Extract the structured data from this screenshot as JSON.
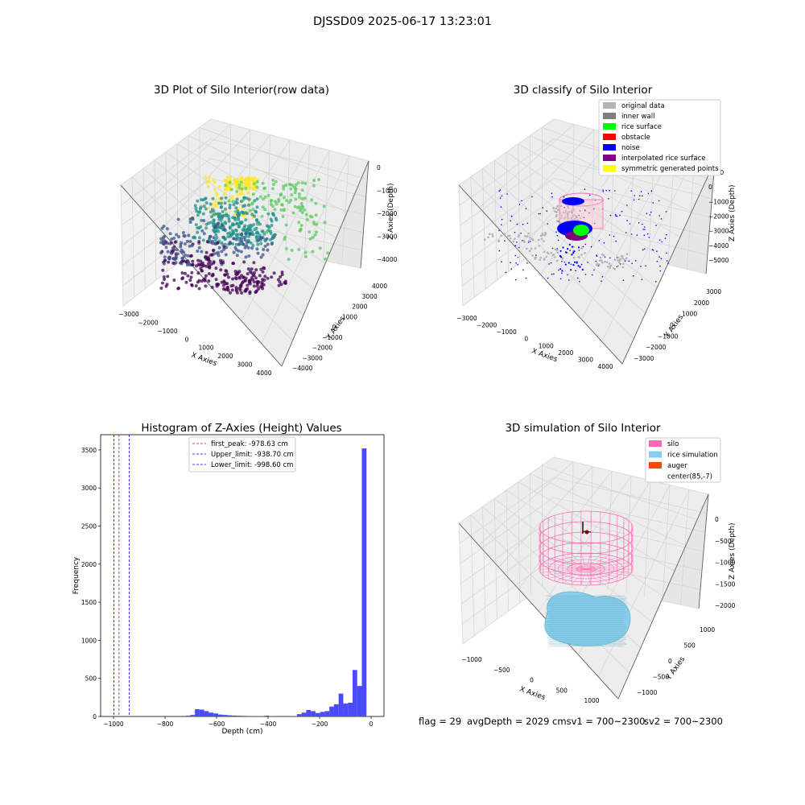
{
  "suptitle": "DJSSD09 2025-06-17 13:23:01",
  "footer": {
    "flag": "flag = 29",
    "avg": "avgDepth = 2029 cmsv1 = 700~2300",
    "sv2": "sv2 = 700~2300"
  },
  "colors": {
    "original": "#b3b3b3",
    "inner_wall": "#7f7f7f",
    "rice_surface": "#00ff00",
    "obstacle": "#ff0000",
    "noise": "#0000ff",
    "interp": "#800080",
    "sym": "#ffff00",
    "silo": "#ff69b4",
    "rice_sim": "#87ceeb",
    "auger": "#ff4500",
    "hist_bar": "#4a4aff"
  },
  "chart_data": [
    {
      "type": "scatter3d",
      "title": "3D Plot of Silo Interior(row data)",
      "xlabel": "X Axies",
      "ylabel": "Y Axies",
      "zlabel": "Z Axies (Depth)",
      "xticks": [
        "−3000",
        "−2000",
        "−1000",
        "0",
        "1000",
        "2000",
        "3000",
        "4000"
      ],
      "yticks": [
        "−4000",
        "−3000",
        "−2000",
        "−1000",
        "0",
        "1000",
        "2000",
        "3000",
        "4000"
      ],
      "zticks": [
        "0",
        "−1000",
        "−2000",
        "−3000",
        "−4000"
      ],
      "colormap": "viridis (by depth)"
    },
    {
      "type": "scatter3d",
      "title": "3D classify of Silo Interior",
      "xlabel": "X Axies",
      "ylabel": "Y Axies",
      "zlabel": "Z Axies (Depth)",
      "xticks": [
        "−3000",
        "−2000",
        "−1000",
        "0",
        "1000",
        "2000",
        "3000",
        "4000"
      ],
      "yticks": [
        "−3000",
        "−2000",
        "−1000",
        "0",
        "1000",
        "2000",
        "3000"
      ],
      "zticks": [
        "1000",
        "0",
        "−1000",
        "−2000",
        "−3000",
        "−4000",
        "−5000"
      ],
      "legend": [
        "original data",
        "inner wall",
        "rice surface",
        "obstacle",
        "noise",
        "interpolated rice surface",
        "symmetric generated points"
      ],
      "legend_placement": "top-right"
    },
    {
      "type": "bar",
      "title": "Histogram of Z-Axies (Height) Values",
      "xlabel": "Depth (cm)",
      "ylabel": "Frequency",
      "xlim": [
        -1050,
        50
      ],
      "ylim": [
        0,
        3700
      ],
      "xticks": [
        -1000,
        -800,
        -600,
        -400,
        -200,
        0
      ],
      "xticklabels": [
        "−1000",
        "−800",
        "−600",
        "−400",
        "−200",
        "0"
      ],
      "yticks": [
        0,
        500,
        1000,
        1500,
        2000,
        2500,
        3000,
        3500
      ],
      "bin_width": 18,
      "bins": [
        [
          -720,
          10
        ],
        [
          -702,
          20
        ],
        [
          -684,
          95
        ],
        [
          -666,
          90
        ],
        [
          -648,
          70
        ],
        [
          -630,
          50
        ],
        [
          -612,
          40
        ],
        [
          -594,
          25
        ],
        [
          -576,
          20
        ],
        [
          -558,
          15
        ],
        [
          -540,
          12
        ],
        [
          -522,
          10
        ],
        [
          -504,
          8
        ],
        [
          -486,
          6
        ],
        [
          -468,
          4
        ],
        [
          -450,
          3
        ],
        [
          -432,
          5
        ],
        [
          -414,
          10
        ],
        [
          -396,
          5
        ],
        [
          -378,
          3
        ],
        [
          -360,
          2
        ],
        [
          -342,
          2
        ],
        [
          -324,
          3
        ],
        [
          -306,
          4
        ],
        [
          -288,
          30
        ],
        [
          -270,
          50
        ],
        [
          -252,
          85
        ],
        [
          -234,
          70
        ],
        [
          -216,
          45
        ],
        [
          -198,
          60
        ],
        [
          -180,
          70
        ],
        [
          -162,
          130
        ],
        [
          -144,
          160
        ],
        [
          -126,
          300
        ],
        [
          -108,
          170
        ],
        [
          -90,
          180
        ],
        [
          -72,
          610
        ],
        [
          -54,
          400
        ],
        [
          -36,
          3520
        ]
      ],
      "vlines": [
        {
          "label": "first_peak: -978.63 cm",
          "x": -978.63,
          "color": "#ff0000"
        },
        {
          "label": "Upper_limit: -938.70 cm",
          "x": -938.7,
          "color": "#0000ff"
        },
        {
          "label": "Lower_limit: -998.60 cm",
          "x": -998.6,
          "color": "#0000ff"
        }
      ],
      "legend_placement": "upper-center"
    },
    {
      "type": "wireframe3d",
      "title": "3D simulation of Silo Interior",
      "xlabel": "X Axies",
      "ylabel": "Y Axies",
      "zlabel": "Z Axies (Depth)",
      "xticks": [
        "−1000",
        "−500",
        "0",
        "500",
        "1000"
      ],
      "yticks": [
        "−1000",
        "−500",
        "0",
        "500",
        "1000"
      ],
      "zticks": [
        "0",
        "−500",
        "−1000",
        "−1500",
        "−2000"
      ],
      "legend": [
        "silo",
        "rice simulation",
        "auger",
        "center(85,-7)"
      ],
      "legend_placement": "top-right"
    }
  ]
}
